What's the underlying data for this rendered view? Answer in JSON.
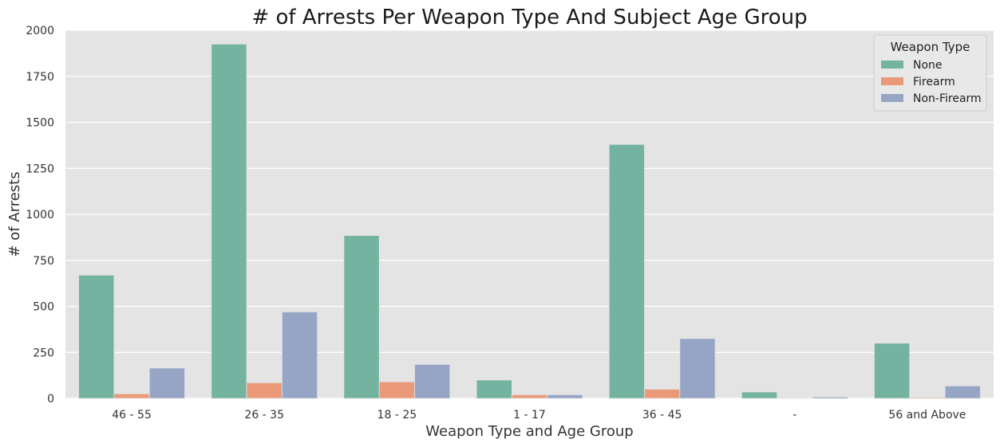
{
  "chart_data": {
    "type": "bar",
    "title": "# of Arrests Per Weapon Type And Subject Age Group",
    "xlabel": "Weapon Type and Age Group",
    "ylabel": "# of Arrests",
    "ylim": [
      0,
      2000
    ],
    "yticks": [
      0,
      250,
      500,
      750,
      1000,
      1250,
      1500,
      1750,
      2000
    ],
    "grid": true,
    "legend": {
      "title": "Weapon Type",
      "placement": "top-right"
    },
    "categories": [
      "46 - 55",
      "26 - 35",
      "18 - 25",
      "1 - 17",
      "36 - 45",
      "-",
      "56 and Above"
    ],
    "series": [
      {
        "name": "None",
        "color": "#73b3a0",
        "values": [
          670,
          1925,
          885,
          100,
          1380,
          35,
          300
        ]
      },
      {
        "name": "Firearm",
        "color": "#ea9a79",
        "values": [
          25,
          85,
          90,
          20,
          50,
          1,
          5
        ]
      },
      {
        "name": "Non-Firearm",
        "color": "#96a5c5",
        "values": [
          165,
          470,
          185,
          20,
          325,
          8,
          68
        ]
      }
    ]
  },
  "colors": {
    "plot_background": "#e4e4e4",
    "grid": "#ffffff"
  }
}
